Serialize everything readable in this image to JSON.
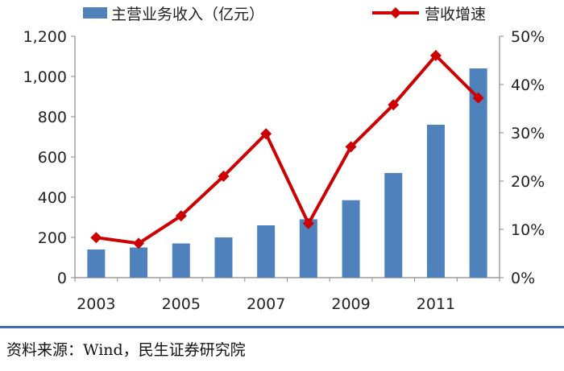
{
  "chart_data": {
    "type": "bar",
    "x": [
      2003,
      2004,
      2005,
      2006,
      2007,
      2008,
      2009,
      2010,
      2011,
      2012
    ],
    "x_tick_labels": [
      "2003",
      "2005",
      "2007",
      "2009",
      "2011"
    ],
    "series": [
      {
        "name": "主营业务收入（亿元）",
        "type": "bar",
        "axis": "left",
        "color": "#4f81bd",
        "values": [
          140,
          150,
          170,
          200,
          260,
          290,
          385,
          520,
          760,
          1040
        ]
      },
      {
        "name": "营收增速",
        "type": "line",
        "axis": "right",
        "color": "#cc0000",
        "unit": "%",
        "values": [
          8.3,
          7.1,
          12.8,
          21.0,
          29.8,
          11.2,
          27.1,
          35.8,
          46.0,
          37.2
        ]
      }
    ],
    "left_axis": {
      "ylim": [
        0,
        1200
      ],
      "ticks": [
        0,
        200,
        400,
        600,
        800,
        1000,
        1200
      ],
      "tick_labels": [
        "0",
        "200",
        "400",
        "600",
        "800",
        "1,000",
        "1,200"
      ]
    },
    "right_axis": {
      "ylim": [
        0,
        50
      ],
      "ticks": [
        0,
        10,
        20,
        30,
        40,
        50
      ],
      "tick_labels": [
        "0%",
        "10%",
        "20%",
        "30%",
        "40%",
        "50%"
      ]
    },
    "legend": "top",
    "grid": false
  },
  "source": "资料来源：Wind，民生证券研究院"
}
